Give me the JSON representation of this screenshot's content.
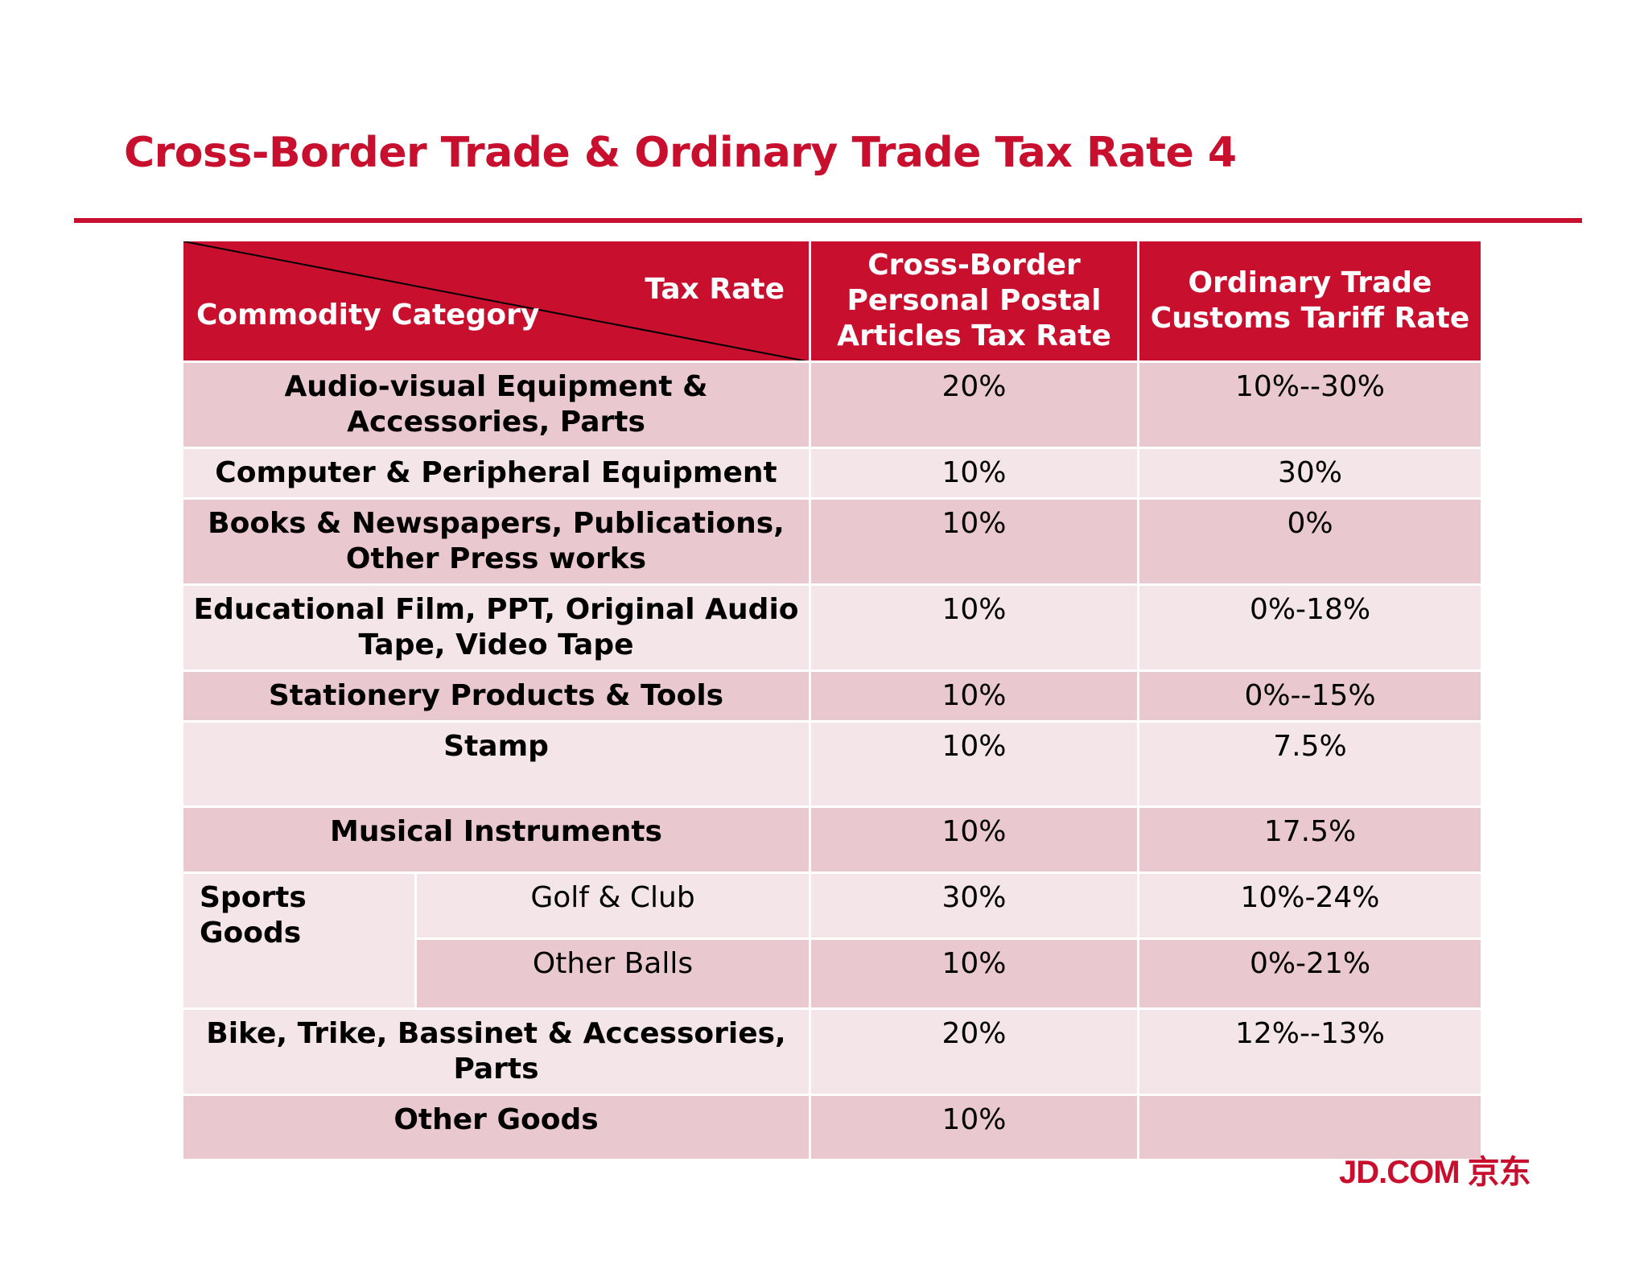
{
  "title": "Cross-Border Trade & Ordinary Trade Tax Rate 4",
  "header": {
    "corner_tax_rate": "Tax Rate",
    "corner_category": "Commodity Category",
    "col_cross_border": "Cross-Border Personal Postal Articles Tax Rate",
    "col_ordinary": "Ordinary Trade Customs Tariff Rate"
  },
  "rows": [
    {
      "category": "Audio-visual Equipment & Accessories, Parts",
      "cross_border": "20%",
      "ordinary": "10%--30%"
    },
    {
      "category": "Computer & Peripheral Equipment",
      "cross_border": "10%",
      "ordinary": "30%"
    },
    {
      "category": "Books & Newspapers, Publications, Other Press works",
      "cross_border": "10%",
      "ordinary": "0%"
    },
    {
      "category": "Educational Film, PPT, Original Audio Tape, Video Tape",
      "cross_border": "10%",
      "ordinary": "0%-18%"
    },
    {
      "category": "Stationery Products & Tools",
      "cross_border": "10%",
      "ordinary": "0%--15%"
    },
    {
      "category": "Stamp",
      "cross_border": "10%",
      "ordinary": "7.5%"
    },
    {
      "category": "Musical Instruments",
      "cross_border": "10%",
      "ordinary": "17.5%"
    }
  ],
  "sports": {
    "category": "Sports Goods",
    "sub": [
      {
        "name": "Golf & Club",
        "cross_border": "30%",
        "ordinary": "10%-24%"
      },
      {
        "name": "Other Balls",
        "cross_border": "10%",
        "ordinary": "0%-21%"
      }
    ]
  },
  "rows_after": [
    {
      "category": "Bike, Trike, Bassinet & Accessories, Parts",
      "cross_border": "20%",
      "ordinary": "12%--13%"
    },
    {
      "category": "Other Goods",
      "cross_border": "10%",
      "ordinary": ""
    }
  ],
  "logo": {
    "text": "JD.COM 京东",
    "color": "#c8102e"
  },
  "colors": {
    "brand_red": "#c8102e",
    "row_dark": "#e9c9cf",
    "row_light": "#f4e5e8"
  }
}
